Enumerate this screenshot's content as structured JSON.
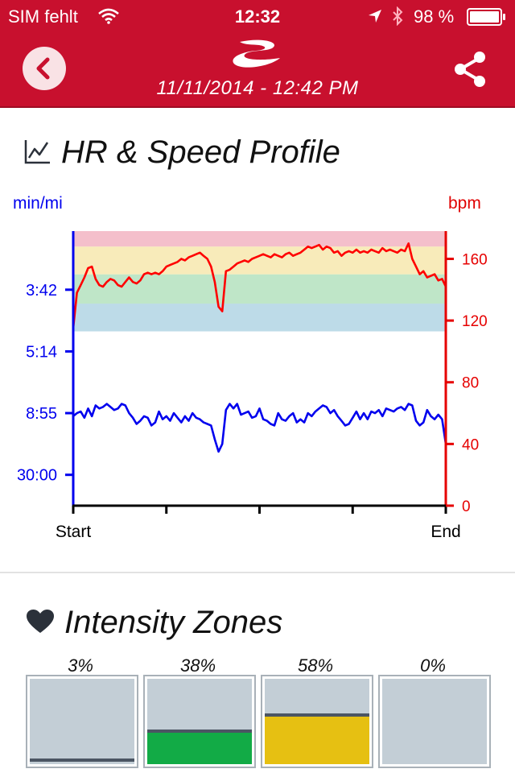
{
  "status": {
    "carrier": "SIM fehlt",
    "time": "12:32",
    "battery": "98 %"
  },
  "header": {
    "subtitle": "11/11/2014 - 12:42 PM",
    "back_icon": "chevron-left-icon",
    "share_icon": "share-icon",
    "logo_icon": "swoosh-logo"
  },
  "hr_section": {
    "title": "HR & Speed Profile",
    "icon": "line-chart-icon",
    "left_unit": "min/mi",
    "right_unit": "bpm"
  },
  "zones_section": {
    "title": "Intensity Zones",
    "icon": "heart-icon",
    "zones": [
      {
        "pct": "3%",
        "fraction": 0.03,
        "color": "#c3ced6"
      },
      {
        "pct": "38%",
        "fraction": 0.38,
        "color": "#12ab46"
      },
      {
        "pct": "58%",
        "fraction": 0.58,
        "color": "#e6c012"
      },
      {
        "pct": "0%",
        "fraction": 0.0,
        "color": "#c3ced6"
      }
    ]
  },
  "chart_data": {
    "type": "line",
    "x_tick_labels": [
      "Start",
      "End"
    ],
    "xlim": [
      0,
      100
    ],
    "right_axis": {
      "label": "bpm",
      "ticks": [
        "0",
        "40",
        "80",
        "120",
        "160"
      ],
      "tick_values": [
        0,
        40,
        80,
        120,
        160
      ],
      "ylim": [
        0,
        178
      ],
      "color": "#e60000"
    },
    "left_axis": {
      "label": "min/mi",
      "ticks": [
        "3:42",
        "5:14",
        "8:55",
        "30:00"
      ],
      "tick_values": [
        140,
        100,
        60,
        20
      ],
      "color": "#0000ee"
    },
    "hr_zone_bands": [
      {
        "from": 113,
        "to": 131,
        "color": "#bddbe8"
      },
      {
        "from": 131,
        "to": 150,
        "color": "#bfe6c8"
      },
      {
        "from": 150,
        "to": 168,
        "color": "#f8ebba"
      },
      {
        "from": 168,
        "to": 178,
        "color": "#f4bfcb"
      }
    ],
    "series": [
      {
        "name": "HR",
        "axis": "right",
        "color": "#ff0000",
        "x": [
          0,
          1,
          2,
          3,
          4,
          5,
          6,
          7,
          8,
          9,
          10,
          11,
          12,
          13,
          14,
          15,
          16,
          17,
          18,
          19,
          20,
          21,
          22,
          23,
          24,
          25,
          26,
          27,
          28,
          29,
          30,
          31,
          32,
          33,
          34,
          35,
          36,
          37,
          38,
          39,
          40,
          41,
          42,
          43,
          44,
          45,
          46,
          47,
          48,
          49,
          50,
          51,
          52,
          53,
          54,
          55,
          56,
          57,
          58,
          59,
          60,
          61,
          62,
          63,
          64,
          65,
          66,
          67,
          68,
          69,
          70,
          71,
          72,
          73,
          74,
          75,
          76,
          77,
          78,
          79,
          80,
          81,
          82,
          83,
          84,
          85,
          86,
          87,
          88,
          89,
          90,
          91,
          92,
          93,
          94,
          95,
          96,
          97,
          98,
          99,
          100
        ],
        "y": [
          115,
          138,
          143,
          148,
          154,
          155,
          147,
          143,
          142,
          145,
          147,
          146,
          143,
          142,
          145,
          148,
          145,
          144,
          146,
          150,
          151,
          150,
          151,
          150,
          152,
          155,
          156,
          157,
          158,
          160,
          159,
          161,
          162,
          163,
          164,
          162,
          160,
          155,
          145,
          129,
          126,
          152,
          153,
          155,
          157,
          158,
          159,
          158,
          160,
          161,
          162,
          163,
          162,
          161,
          163,
          162,
          161,
          163,
          164,
          162,
          163,
          164,
          166,
          168,
          167,
          168,
          169,
          166,
          168,
          167,
          164,
          165,
          162,
          164,
          165,
          164,
          166,
          164,
          165,
          164,
          166,
          165,
          164,
          167,
          165,
          166,
          165,
          164,
          166,
          165,
          170,
          160,
          155,
          150,
          152,
          148,
          149,
          150,
          146,
          147,
          142
        ]
      },
      {
        "name": "Speed",
        "axis": "left",
        "color": "#0000ee",
        "x": [
          0,
          1,
          2,
          3,
          4,
          5,
          6,
          7,
          8,
          9,
          10,
          11,
          12,
          13,
          14,
          15,
          16,
          17,
          18,
          19,
          20,
          21,
          22,
          23,
          24,
          25,
          26,
          27,
          28,
          29,
          30,
          31,
          32,
          33,
          34,
          35,
          36,
          37,
          38,
          39,
          40,
          41,
          42,
          43,
          44,
          45,
          46,
          47,
          48,
          49,
          50,
          51,
          52,
          53,
          54,
          55,
          56,
          57,
          58,
          59,
          60,
          61,
          62,
          63,
          64,
          65,
          66,
          67,
          68,
          69,
          70,
          71,
          72,
          73,
          74,
          75,
          76,
          77,
          78,
          79,
          80,
          81,
          82,
          83,
          84,
          85,
          86,
          87,
          88,
          89,
          90,
          91,
          92,
          93,
          94,
          95,
          96,
          97,
          98,
          99,
          100
        ],
        "y": [
          58,
          60,
          61,
          57,
          63,
          58,
          65,
          63,
          64,
          66,
          64,
          62,
          63,
          66,
          65,
          60,
          57,
          53,
          55,
          58,
          57,
          52,
          54,
          61,
          56,
          58,
          55,
          60,
          57,
          54,
          58,
          55,
          60,
          57,
          56,
          54,
          53,
          52,
          43,
          35,
          40,
          62,
          66,
          63,
          66,
          59,
          60,
          61,
          57,
          58,
          63,
          56,
          55,
          53,
          52,
          60,
          56,
          55,
          58,
          60,
          54,
          56,
          54,
          60,
          58,
          61,
          63,
          65,
          64,
          60,
          62,
          58,
          55,
          52,
          53,
          57,
          61,
          56,
          60,
          56,
          61,
          60,
          62,
          58,
          63,
          62,
          61,
          63,
          64,
          62,
          66,
          65,
          55,
          52,
          54,
          62,
          58,
          56,
          59,
          56,
          40
        ]
      }
    ]
  }
}
